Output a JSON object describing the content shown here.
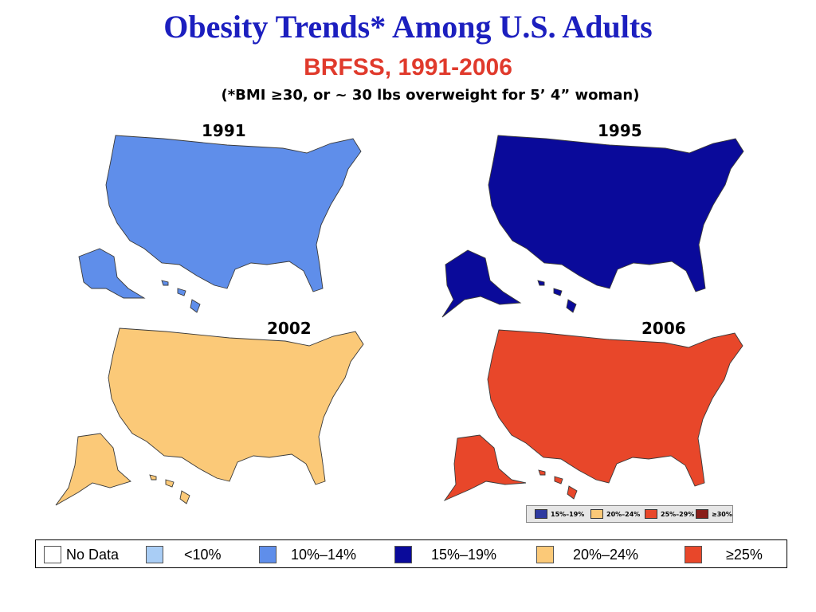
{
  "title": "Obesity Trends* Among U.S. Adults",
  "subtitle": "BRFSS, 1991-2006",
  "note": "(*BMI ≥30, or ~ 30 lbs overweight for 5’ 4” woman)",
  "colors": {
    "title": "#1c1fbf",
    "subtitle": "#e03a2c",
    "no_data": "#ffffff",
    "lt10": "#a9cdf5",
    "c10_14": "#5f8eea",
    "c15_19": "#0a0a9a",
    "c20_24": "#fbc978",
    "ge25": "#e8472a",
    "inset_15_19": "#2e3aa0",
    "inset_20_24": "#fbc978",
    "inset_25_29": "#e8472a",
    "inset_ge30": "#8a1f1a"
  },
  "maps": [
    {
      "year": "1991",
      "fill_key": "c10_14"
    },
    {
      "year": "1995",
      "fill_key": "c15_19"
    },
    {
      "year": "2002",
      "fill_key": "c20_24"
    },
    {
      "year": "2006",
      "fill_key": "ge25"
    }
  ],
  "inset_legend": [
    "15%–19%",
    "20%–24%",
    "25%–29%",
    "≥30%"
  ],
  "legend": [
    {
      "label": "No Data",
      "color_key": "no_data"
    },
    {
      "label": "<10%",
      "color_key": "lt10"
    },
    {
      "label": "10%–14%",
      "color_key": "c10_14"
    },
    {
      "label": "15%–19%",
      "color_key": "c15_19"
    },
    {
      "label": "20%–24%",
      "color_key": "c20_24"
    },
    {
      "label": "≥25%",
      "color_key": "ge25"
    }
  ]
}
